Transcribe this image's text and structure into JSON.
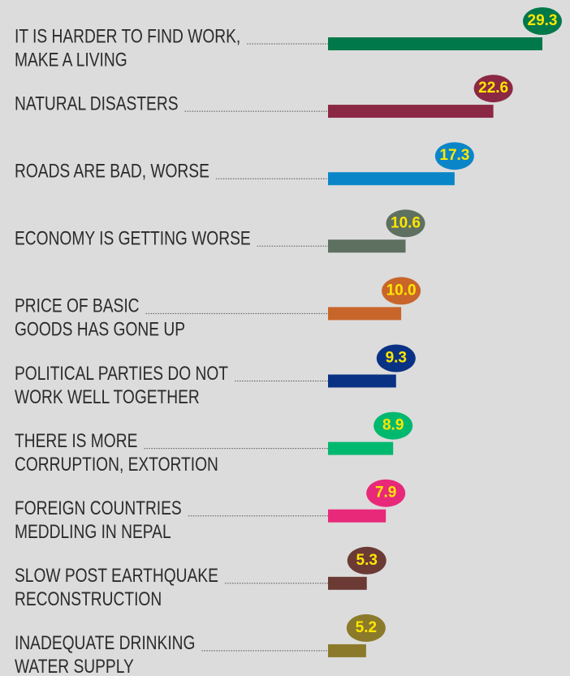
{
  "chart_data": {
    "type": "bar",
    "categories": [
      [
        "IT IS HARDER TO FIND WORK,",
        "MAKE A LIVING"
      ],
      [
        "NATURAL DISASTERS"
      ],
      [
        "ROADS ARE BAD, WORSE"
      ],
      [
        "ECONOMY IS GETTING WORSE"
      ],
      [
        "PRICE OF BASIC",
        "GOODS HAS GONE UP"
      ],
      [
        "POLITICAL PARTIES DO NOT",
        "WORK WELL TOGETHER"
      ],
      [
        "THERE IS MORE",
        "CORRUPTION, EXTORTION"
      ],
      [
        "FOREIGN COUNTRIES",
        "MEDDLING IN NEPAL"
      ],
      [
        "SLOW POST EARTHQUAKE",
        "RECONSTRUCTION"
      ],
      [
        "INADEQUATE DRINKING",
        "WATER SUPPLY"
      ]
    ],
    "values": [
      29.3,
      22.6,
      17.3,
      10.6,
      10,
      9.3,
      8.9,
      7.9,
      5.3,
      5.2
    ],
    "value_labels": [
      "29.3",
      "22.6",
      "17.3",
      "10.6",
      "10.0",
      "9.3",
      "8.9",
      "7.9",
      "5.3",
      "5.2"
    ],
    "colors": [
      "#00784a",
      "#8b2843",
      "#0a86c8",
      "#5e7060",
      "#c8652a",
      "#0a3284",
      "#00b86e",
      "#e8297a",
      "#6b3a35",
      "#8b7a2a"
    ]
  }
}
